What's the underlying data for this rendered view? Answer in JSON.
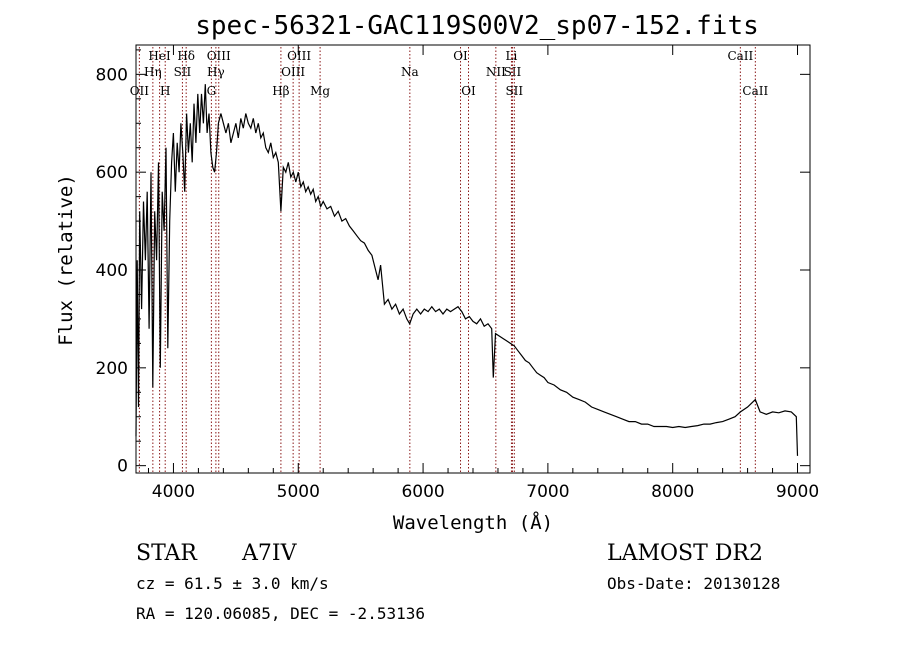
{
  "chart_data": {
    "type": "line",
    "title": "spec-56321-GAC119S00V2_sp07-152.fits",
    "xlabel": "Wavelength (Å)",
    "ylabel": "Flux (relative)",
    "xlim": [
      3700,
      9100
    ],
    "ylim": [
      -15,
      860
    ],
    "x_ticks": [
      4000,
      5000,
      6000,
      7000,
      8000,
      9000
    ],
    "y_ticks": [
      0,
      200,
      400,
      600,
      800
    ],
    "grid": false,
    "line_color": "#000000",
    "marker_color": "#8b1a1a",
    "series": [
      {
        "values": [
          [
            3700,
            60
          ],
          [
            3710,
            420
          ],
          [
            3720,
            120
          ],
          [
            3730,
            520
          ],
          [
            3745,
            320
          ],
          [
            3760,
            540
          ],
          [
            3775,
            420
          ],
          [
            3790,
            560
          ],
          [
            3805,
            280
          ],
          [
            3820,
            600
          ],
          [
            3835,
            160
          ],
          [
            3850,
            520
          ],
          [
            3865,
            420
          ],
          [
            3880,
            620
          ],
          [
            3895,
            200
          ],
          [
            3910,
            560
          ],
          [
            3925,
            480
          ],
          [
            3940,
            650
          ],
          [
            3955,
            240
          ],
          [
            3970,
            500
          ],
          [
            3985,
            620
          ],
          [
            4000,
            680
          ],
          [
            4015,
            560
          ],
          [
            4030,
            660
          ],
          [
            4045,
            600
          ],
          [
            4060,
            700
          ],
          [
            4075,
            640
          ],
          [
            4090,
            560
          ],
          [
            4105,
            720
          ],
          [
            4120,
            640
          ],
          [
            4135,
            700
          ],
          [
            4150,
            620
          ],
          [
            4165,
            740
          ],
          [
            4180,
            660
          ],
          [
            4195,
            760
          ],
          [
            4210,
            680
          ],
          [
            4225,
            760
          ],
          [
            4240,
            700
          ],
          [
            4255,
            780
          ],
          [
            4270,
            680
          ],
          [
            4285,
            720
          ],
          [
            4300,
            640
          ],
          [
            4315,
            610
          ],
          [
            4330,
            600
          ],
          [
            4345,
            640
          ],
          [
            4360,
            700
          ],
          [
            4380,
            720
          ],
          [
            4400,
            700
          ],
          [
            4420,
            680
          ],
          [
            4440,
            700
          ],
          [
            4460,
            660
          ],
          [
            4480,
            680
          ],
          [
            4500,
            700
          ],
          [
            4520,
            670
          ],
          [
            4540,
            710
          ],
          [
            4560,
            690
          ],
          [
            4580,
            720
          ],
          [
            4600,
            700
          ],
          [
            4620,
            690
          ],
          [
            4640,
            710
          ],
          [
            4660,
            680
          ],
          [
            4680,
            700
          ],
          [
            4700,
            670
          ],
          [
            4720,
            680
          ],
          [
            4740,
            650
          ],
          [
            4760,
            640
          ],
          [
            4780,
            660
          ],
          [
            4800,
            630
          ],
          [
            4820,
            640
          ],
          [
            4840,
            620
          ],
          [
            4861,
            520
          ],
          [
            4880,
            610
          ],
          [
            4900,
            600
          ],
          [
            4920,
            620
          ],
          [
            4940,
            590
          ],
          [
            4960,
            600
          ],
          [
            4980,
            580
          ],
          [
            5000,
            600
          ],
          [
            5020,
            570
          ],
          [
            5040,
            580
          ],
          [
            5060,
            560
          ],
          [
            5080,
            570
          ],
          [
            5100,
            555
          ],
          [
            5120,
            565
          ],
          [
            5140,
            540
          ],
          [
            5160,
            550
          ],
          [
            5180,
            530
          ],
          [
            5200,
            540
          ],
          [
            5230,
            525
          ],
          [
            5260,
            530
          ],
          [
            5290,
            510
          ],
          [
            5320,
            520
          ],
          [
            5350,
            500
          ],
          [
            5380,
            505
          ],
          [
            5410,
            490
          ],
          [
            5440,
            480
          ],
          [
            5470,
            470
          ],
          [
            5500,
            460
          ],
          [
            5530,
            455
          ],
          [
            5560,
            440
          ],
          [
            5590,
            430
          ],
          [
            5620,
            400
          ],
          [
            5640,
            380
          ],
          [
            5660,
            410
          ],
          [
            5690,
            330
          ],
          [
            5720,
            340
          ],
          [
            5750,
            320
          ],
          [
            5780,
            330
          ],
          [
            5810,
            310
          ],
          [
            5840,
            320
          ],
          [
            5870,
            300
          ],
          [
            5893,
            290
          ],
          [
            5920,
            310
          ],
          [
            5950,
            320
          ],
          [
            5980,
            310
          ],
          [
            6010,
            320
          ],
          [
            6040,
            315
          ],
          [
            6070,
            325
          ],
          [
            6100,
            315
          ],
          [
            6130,
            320
          ],
          [
            6160,
            310
          ],
          [
            6190,
            320
          ],
          [
            6220,
            315
          ],
          [
            6250,
            320
          ],
          [
            6280,
            325
          ],
          [
            6310,
            315
          ],
          [
            6340,
            300
          ],
          [
            6370,
            305
          ],
          [
            6400,
            295
          ],
          [
            6430,
            290
          ],
          [
            6460,
            300
          ],
          [
            6490,
            285
          ],
          [
            6520,
            290
          ],
          [
            6550,
            280
          ],
          [
            6563,
            180
          ],
          [
            6580,
            270
          ],
          [
            6610,
            265
          ],
          [
            6640,
            260
          ],
          [
            6670,
            255
          ],
          [
            6700,
            250
          ],
          [
            6730,
            245
          ],
          [
            6760,
            235
          ],
          [
            6790,
            225
          ],
          [
            6820,
            215
          ],
          [
            6850,
            210
          ],
          [
            6880,
            200
          ],
          [
            6910,
            190
          ],
          [
            6940,
            185
          ],
          [
            6970,
            180
          ],
          [
            7000,
            170
          ],
          [
            7050,
            165
          ],
          [
            7100,
            155
          ],
          [
            7150,
            150
          ],
          [
            7200,
            140
          ],
          [
            7250,
            135
          ],
          [
            7300,
            130
          ],
          [
            7350,
            120
          ],
          [
            7400,
            115
          ],
          [
            7450,
            110
          ],
          [
            7500,
            105
          ],
          [
            7550,
            100
          ],
          [
            7600,
            95
          ],
          [
            7650,
            90
          ],
          [
            7700,
            90
          ],
          [
            7750,
            85
          ],
          [
            7800,
            85
          ],
          [
            7850,
            80
          ],
          [
            7900,
            80
          ],
          [
            7950,
            80
          ],
          [
            8000,
            78
          ],
          [
            8050,
            80
          ],
          [
            8100,
            78
          ],
          [
            8150,
            80
          ],
          [
            8200,
            82
          ],
          [
            8250,
            85
          ],
          [
            8300,
            85
          ],
          [
            8350,
            88
          ],
          [
            8400,
            90
          ],
          [
            8450,
            95
          ],
          [
            8500,
            100
          ],
          [
            8542,
            110
          ],
          [
            8600,
            120
          ],
          [
            8662,
            135
          ],
          [
            8700,
            110
          ],
          [
            8750,
            105
          ],
          [
            8800,
            110
          ],
          [
            8850,
            108
          ],
          [
            8900,
            112
          ],
          [
            8950,
            110
          ],
          [
            8990,
            100
          ],
          [
            9000,
            20
          ]
        ]
      }
    ],
    "line_markers": [
      {
        "name": "OII",
        "x": 3727,
        "row": 2
      },
      {
        "name": "Hη",
        "x": 3835,
        "row": 1
      },
      {
        "name": "HeI",
        "x": 3889,
        "row": 0
      },
      {
        "name": "H",
        "x": 3934,
        "row": 2
      },
      {
        "name": "SII",
        "x": 4072,
        "row": 1
      },
      {
        "name": "Hδ",
        "x": 4102,
        "row": 0
      },
      {
        "name": "G",
        "x": 4304,
        "row": 2
      },
      {
        "name": "Hγ",
        "x": 4340,
        "row": 1
      },
      {
        "name": "OIII",
        "x": 4363,
        "row": 0
      },
      {
        "name": "Hβ",
        "x": 4861,
        "row": 2
      },
      {
        "name": "OIII",
        "x": 4959,
        "row": 1
      },
      {
        "name": "OIII",
        "x": 5007,
        "row": 0
      },
      {
        "name": "Mg",
        "x": 5175,
        "row": 2
      },
      {
        "name": "Na",
        "x": 5894,
        "row": 1
      },
      {
        "name": "OI",
        "x": 6300,
        "row": 0
      },
      {
        "name": "OI",
        "x": 6364,
        "row": 2
      },
      {
        "name": "NII",
        "x": 6583,
        "row": 1
      },
      {
        "name": "Li",
        "x": 6708,
        "row": 0
      },
      {
        "name": "SII",
        "x": 6716,
        "row": 1
      },
      {
        "name": "SII",
        "x": 6731,
        "row": 2
      },
      {
        "name": "CaII",
        "x": 8542,
        "row": 0
      },
      {
        "name": "CaII",
        "x": 8662,
        "row": 2
      }
    ]
  },
  "info": {
    "object_class": "STAR",
    "subclass": "A7IV",
    "redshift_line": "cz = 61.5 ± 3.0 km/s",
    "coords_line": "RA = 120.06085, DEC =  -2.53136",
    "survey": "LAMOST DR2",
    "obs_date": "Obs-Date: 20130128"
  }
}
